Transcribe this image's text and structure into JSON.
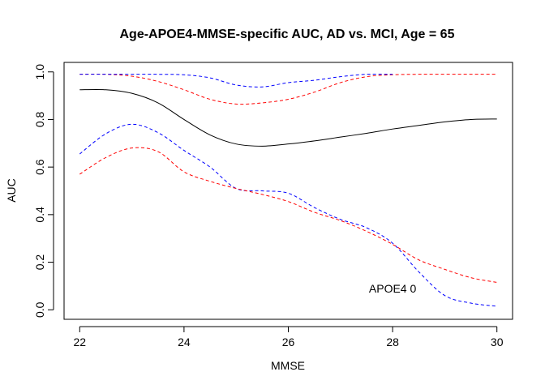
{
  "chart_data": {
    "type": "line",
    "title": "Age-APOE4-MMSE-specific AUC, AD vs. MCI, Age = 65",
    "xlabel": "MMSE",
    "ylabel": "AUC",
    "xlim": [
      21.7,
      30.3
    ],
    "ylim": [
      -0.04,
      1.04
    ],
    "xticks": [
      22,
      24,
      26,
      28,
      30
    ],
    "yticks": [
      0.0,
      0.2,
      0.4,
      0.6,
      0.8,
      1.0
    ],
    "xtick_labels": [
      "22",
      "24",
      "26",
      "28",
      "30"
    ],
    "ytick_labels": [
      "0.0",
      "0.2",
      "0.4",
      "0.6",
      "0.8",
      "1.0"
    ],
    "grid": false,
    "annotation": {
      "text": "APOE4 0",
      "x": 28.0,
      "y": 0.09
    },
    "series": [
      {
        "color": "#000000",
        "dash": "solid",
        "x": [
          22,
          22.5,
          23,
          23.5,
          24,
          24.5,
          25,
          25.5,
          26,
          26.5,
          27,
          27.5,
          28,
          28.5,
          29,
          29.5,
          30
        ],
        "y": [
          0.925,
          0.925,
          0.91,
          0.87,
          0.8,
          0.735,
          0.697,
          0.688,
          0.697,
          0.71,
          0.726,
          0.742,
          0.76,
          0.775,
          0.79,
          0.8,
          0.802
        ]
      },
      {
        "color": "#ff0000",
        "dash": "dashed",
        "x": [
          22,
          22.5,
          23,
          23.5,
          24,
          24.5,
          25,
          25.5,
          26,
          26.5,
          27,
          27.5,
          28,
          28.5,
          29,
          29.5,
          30
        ],
        "y": [
          0.99,
          0.99,
          0.982,
          0.96,
          0.925,
          0.885,
          0.865,
          0.87,
          0.885,
          0.915,
          0.955,
          0.98,
          0.988,
          0.99,
          0.99,
          0.99,
          0.99
        ]
      },
      {
        "color": "#0000ff",
        "dash": "dashed",
        "x": [
          22,
          22.5,
          23,
          23.5,
          24,
          24.5,
          25,
          25.5,
          26,
          26.5,
          27,
          27.5,
          28
        ],
        "y": [
          0.99,
          0.99,
          0.99,
          0.99,
          0.988,
          0.975,
          0.945,
          0.937,
          0.955,
          0.965,
          0.98,
          0.99,
          0.99
        ]
      },
      {
        "color": "#0000ff",
        "dash": "dashed",
        "x": [
          22,
          22.5,
          23,
          23.5,
          24,
          24.5,
          25,
          25.5,
          26,
          26.5,
          27,
          27.5,
          28,
          28.5,
          29,
          29.5,
          30
        ],
        "y": [
          0.655,
          0.74,
          0.78,
          0.745,
          0.67,
          0.6,
          0.51,
          0.5,
          0.49,
          0.43,
          0.38,
          0.345,
          0.28,
          0.16,
          0.06,
          0.028,
          0.015
        ]
      },
      {
        "color": "#ff0000",
        "dash": "dashed",
        "x": [
          22,
          22.5,
          23,
          23.5,
          24,
          24.5,
          25,
          25.5,
          26,
          26.5,
          27,
          27.5,
          28,
          28.5,
          29,
          29.5,
          30
        ],
        "y": [
          0.57,
          0.64,
          0.68,
          0.665,
          0.58,
          0.54,
          0.51,
          0.485,
          0.455,
          0.41,
          0.375,
          0.33,
          0.275,
          0.21,
          0.17,
          0.135,
          0.115
        ]
      }
    ]
  }
}
